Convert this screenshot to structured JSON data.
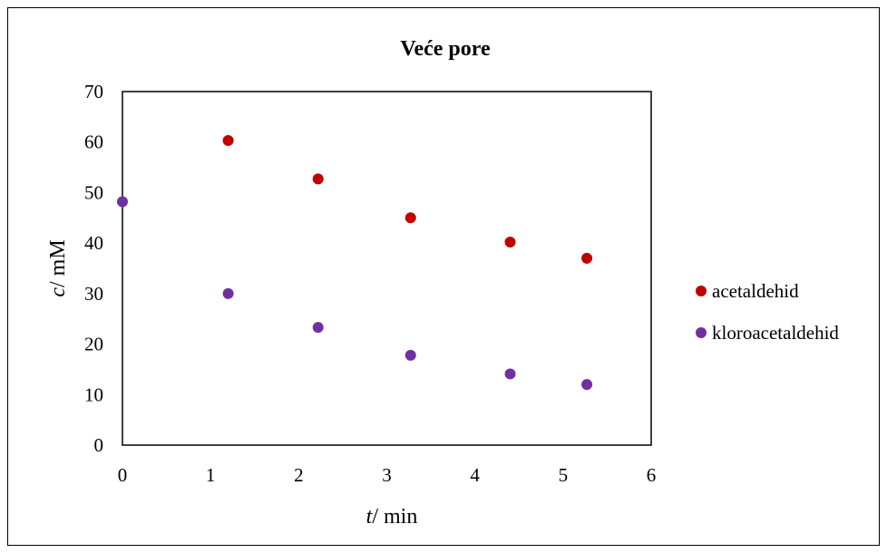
{
  "chart_data": {
    "type": "scatter",
    "title": "Veće pore",
    "xlabel_italic": "t",
    "xlabel_rest": "/ min",
    "ylabel_italic": "c",
    "ylabel_rest": "/ mM",
    "xlim": [
      0,
      6
    ],
    "ylim": [
      0,
      70
    ],
    "x_ticks": [
      "0",
      "1",
      "2",
      "3",
      "4",
      "5",
      "6"
    ],
    "y_ticks": [
      "0",
      "10",
      "20",
      "30",
      "40",
      "50",
      "60",
      "70"
    ],
    "grid": false,
    "legend_position": "right",
    "series": [
      {
        "name": "acetaldehid",
        "color": "#c00000",
        "points": [
          {
            "x": 1.2,
            "y": 60.3
          },
          {
            "x": 2.22,
            "y": 52.7
          },
          {
            "x": 3.27,
            "y": 45.0
          },
          {
            "x": 4.4,
            "y": 40.2
          },
          {
            "x": 5.27,
            "y": 37.0
          }
        ]
      },
      {
        "name": "kloroacetaldehid",
        "color": "#7030a0",
        "points": [
          {
            "x": 0.0,
            "y": 48.2
          },
          {
            "x": 1.2,
            "y": 30.0
          },
          {
            "x": 2.22,
            "y": 23.3
          },
          {
            "x": 3.27,
            "y": 17.8
          },
          {
            "x": 4.4,
            "y": 14.1
          },
          {
            "x": 5.27,
            "y": 12.0
          }
        ]
      }
    ]
  }
}
